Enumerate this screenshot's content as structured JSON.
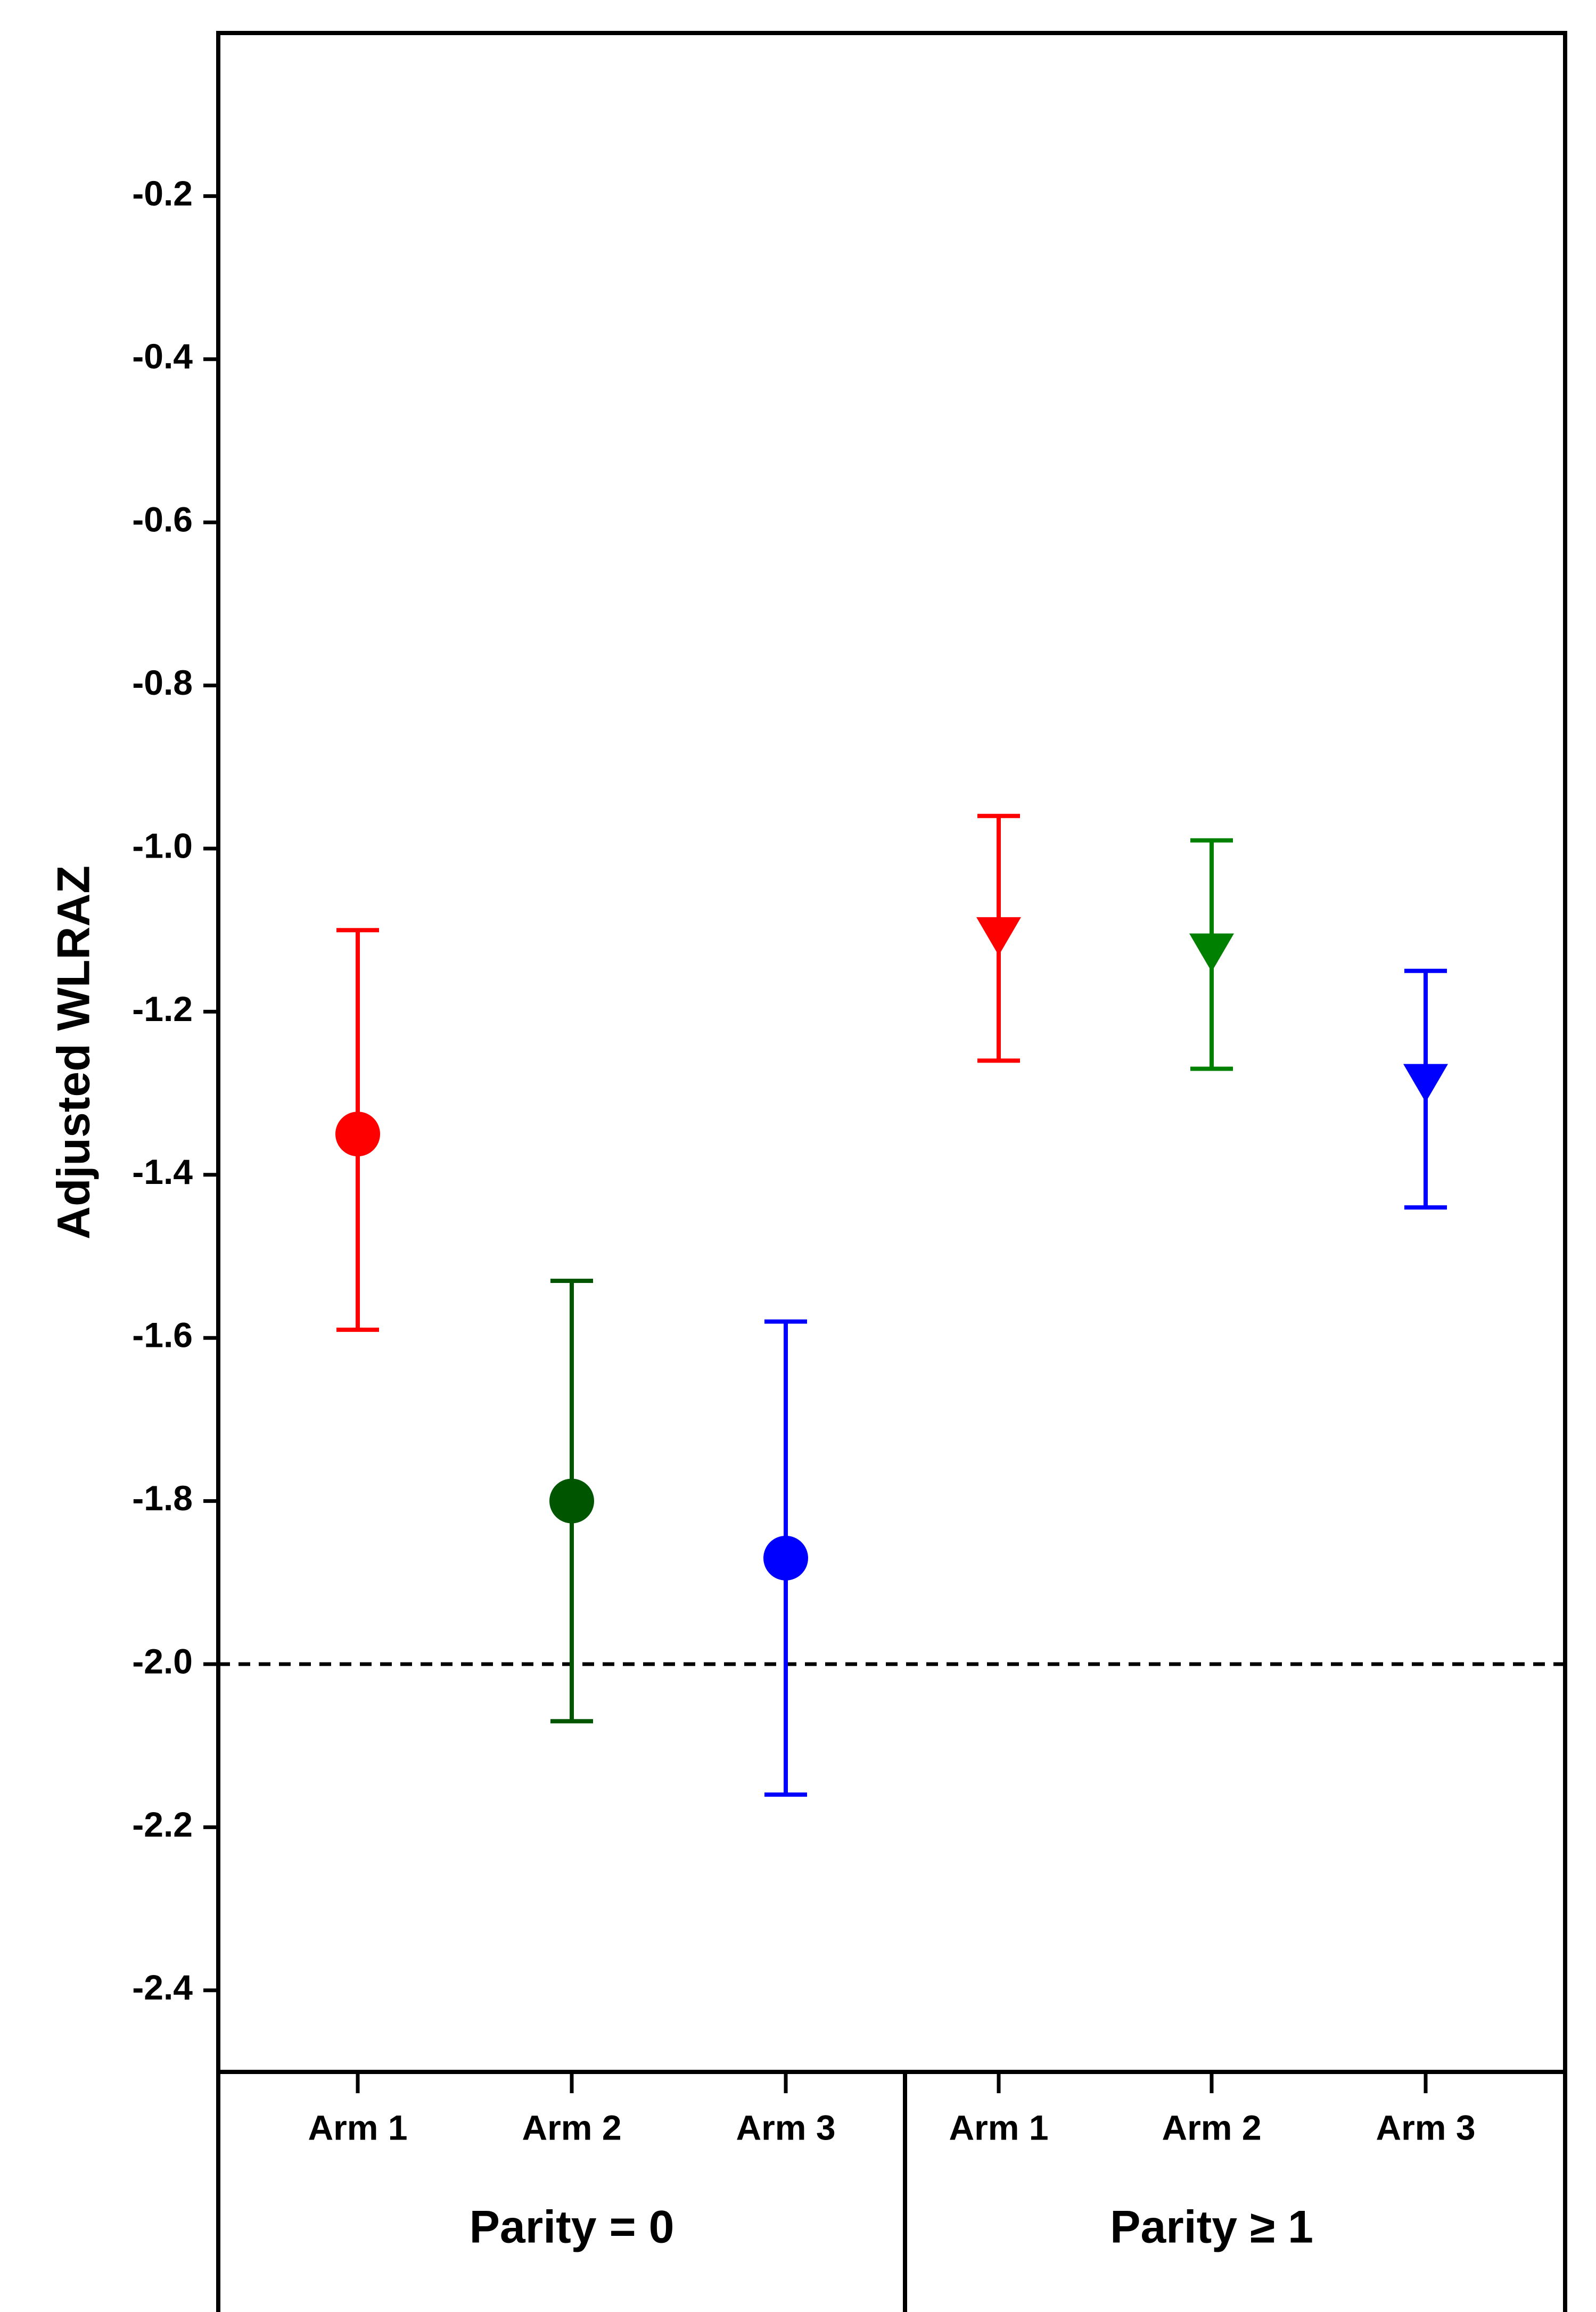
{
  "chart_data": {
    "type": "scatter",
    "ylabel": "Adjusted WLRAZ",
    "ylim": [
      -2.5,
      0
    ],
    "yticks": [
      -0.2,
      -0.4,
      -0.6,
      -0.8,
      -1.0,
      -1.2,
      -1.4,
      -1.6,
      -1.8,
      -2.0,
      -2.2,
      -2.4
    ],
    "ytick_labels": [
      "-0.2",
      "-0.4",
      "-0.6",
      "-0.8",
      "-1.0",
      "-1.2",
      "-1.4",
      "-1.6",
      "-1.8",
      "-2.0",
      "-2.2",
      "-2.4"
    ],
    "reference_line": -2.0,
    "groups": [
      {
        "label": "Parity = 0",
        "marker": "circle",
        "points": [
          {
            "category": "Arm 1",
            "value": -1.35,
            "lower": -1.59,
            "upper": -1.1,
            "color": "#ff0000"
          },
          {
            "category": "Arm 2",
            "value": -1.8,
            "lower": -2.07,
            "upper": -1.53,
            "color": "#005500"
          },
          {
            "category": "Arm 3",
            "value": -1.87,
            "lower": -2.16,
            "upper": -1.58,
            "color": "#0000ff"
          }
        ]
      },
      {
        "label": "Parity ≥ 1",
        "marker": "triangle-down",
        "points": [
          {
            "category": "Arm 1",
            "value": -1.11,
            "lower": -1.26,
            "upper": -0.96,
            "color": "#ff0000"
          },
          {
            "category": "Arm 2",
            "value": -1.13,
            "lower": -1.27,
            "upper": -0.99,
            "color": "#008000"
          },
          {
            "category": "Arm 3",
            "value": -1.29,
            "lower": -1.44,
            "upper": -1.15,
            "color": "#0000ff"
          }
        ]
      }
    ]
  }
}
